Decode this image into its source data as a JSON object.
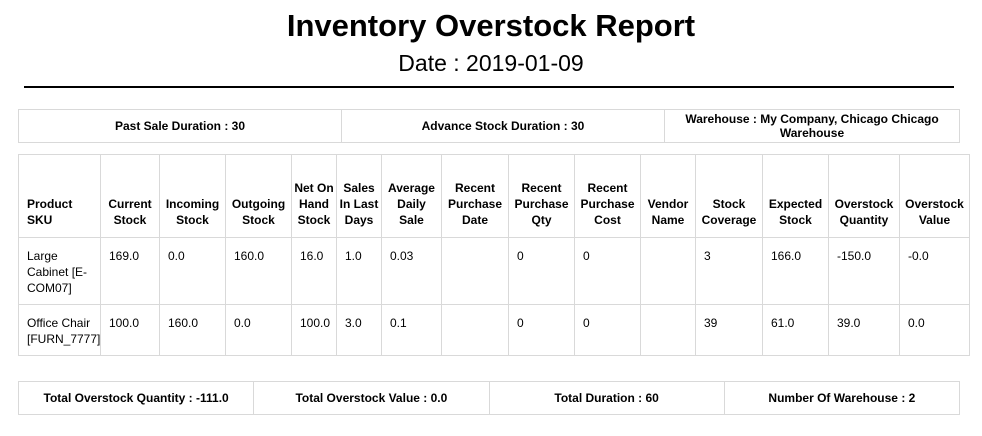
{
  "header": {
    "title": "Inventory Overstock Report",
    "date": "Date : 2019-01-09"
  },
  "info": {
    "past_sale": "Past Sale Duration : 30",
    "advance_stock": "Advance Stock Duration : 30",
    "warehouse": "Warehouse : My Company, Chicago Chicago Warehouse"
  },
  "table": {
    "columns": [
      "Product SKU",
      "Current Stock",
      "Incoming Stock",
      "Outgoing Stock",
      "Net On Hand Stock",
      "Sales In Last Days",
      "Average Daily Sale",
      "Recent Purchase Date",
      "Recent Purchase Qty",
      "Recent Purchase Cost",
      "Vendor Name",
      "Stock Coverage",
      "Expected Stock",
      "Overstock Quantity",
      "Overstock Value"
    ],
    "rows": [
      [
        "Large Cabinet [E-COM07]",
        "169.0",
        "0.0",
        "160.0",
        "16.0",
        "1.0",
        "0.03",
        "",
        "0",
        "0",
        "",
        "3",
        "166.0",
        "-150.0",
        "-0.0"
      ],
      [
        "Office Chair [FURN_7777]",
        "100.0",
        "160.0",
        "0.0",
        "100.0",
        "3.0",
        "0.1",
        "",
        "0",
        "0",
        "",
        "39",
        "61.0",
        "39.0",
        "0.0"
      ]
    ]
  },
  "totals": {
    "overstock_qty": "Total Overstock Quantity : -111.0",
    "overstock_value": "Total Overstock Value : 0.0",
    "duration": "Total Duration : 60",
    "warehouses": "Number Of Warehouse : 2"
  }
}
